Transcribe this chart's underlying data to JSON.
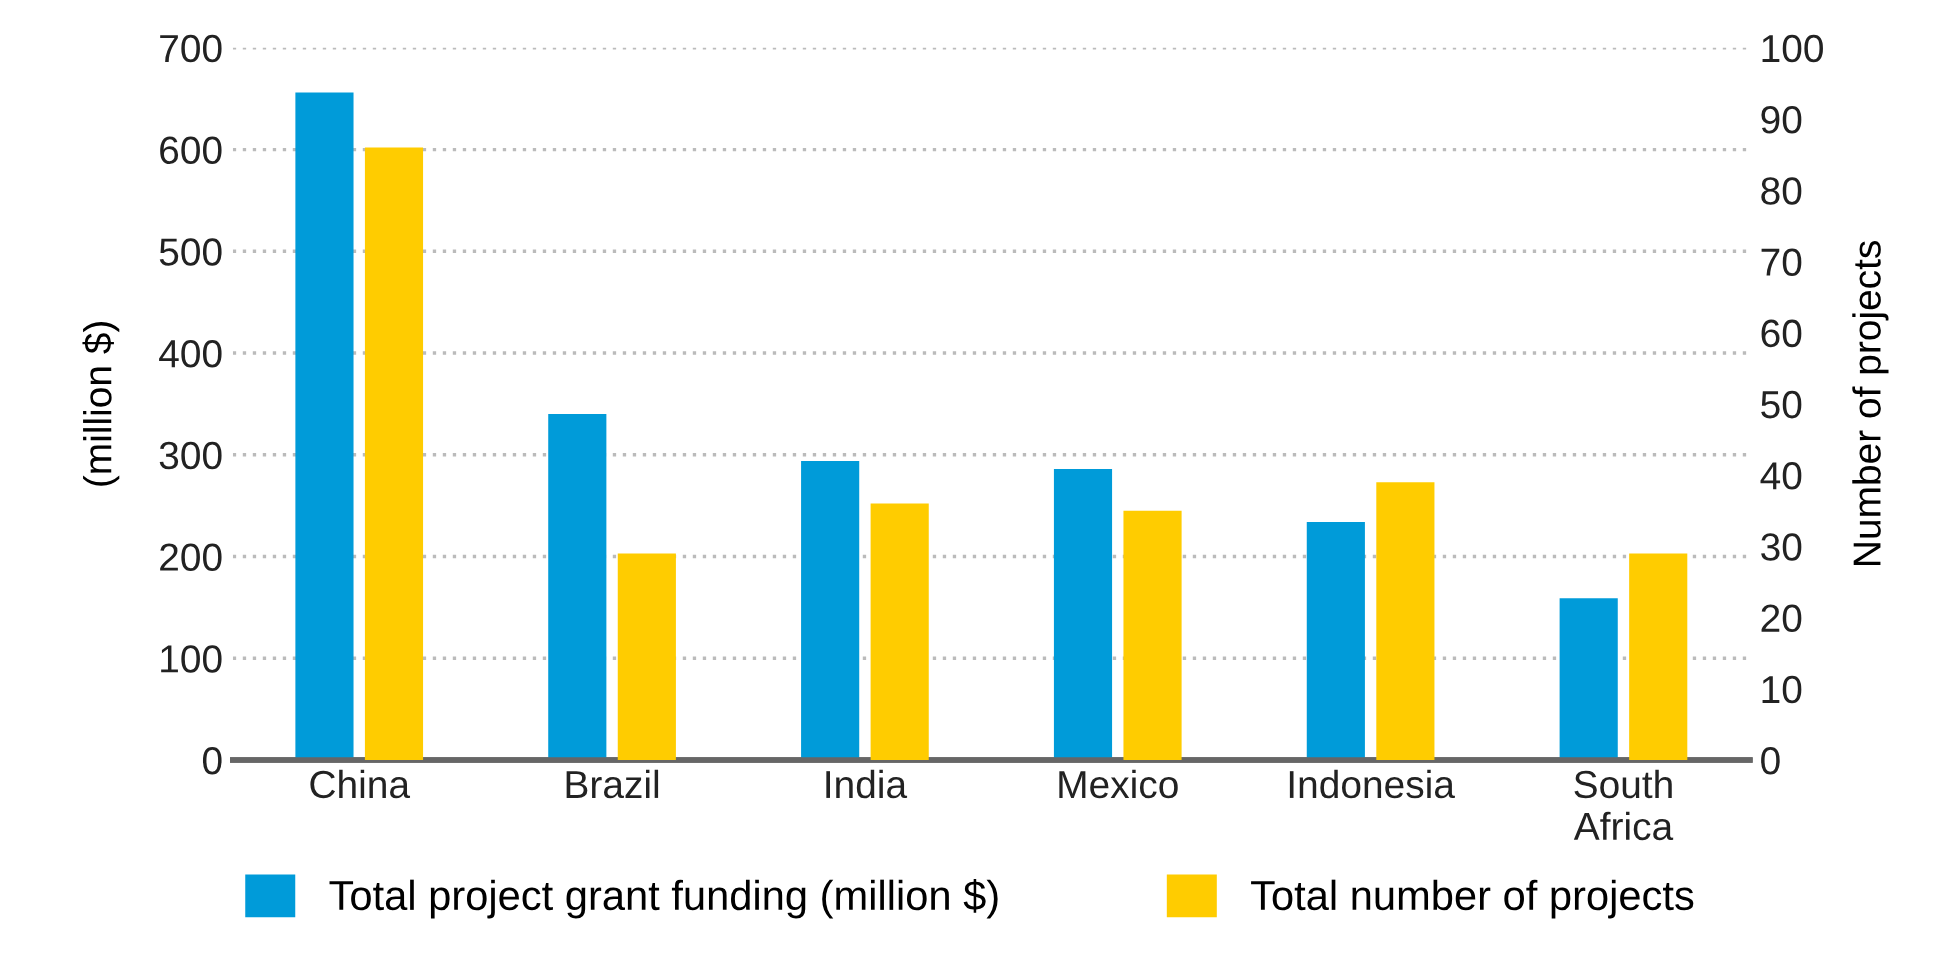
{
  "chart_data": {
    "type": "bar",
    "categories": [
      "China",
      "Brazil",
      "India",
      "Mexico",
      "Indonesia",
      "South\nAfrica"
    ],
    "series": [
      {
        "name": "Total project grant funding (million $)",
        "color": "#009bd9",
        "values": [
          656,
          340,
          294,
          286,
          234,
          159
        ]
      },
      {
        "name": "Total number of projects",
        "color": "#ffcc00",
        "axis": "y2",
        "values": [
          86,
          29,
          36,
          35,
          39,
          29
        ]
      }
    ],
    "ylabel": "(million $)",
    "y2label": "Number of projects",
    "ylim": [
      0,
      700
    ],
    "yticks": [
      0,
      100,
      200,
      300,
      400,
      500,
      600,
      700
    ],
    "y2lim": [
      0,
      100
    ],
    "y2ticks": [
      0,
      10,
      20,
      30,
      40,
      50,
      60,
      70,
      80,
      90,
      100
    ],
    "grid": "y",
    "legend": "bottom"
  }
}
